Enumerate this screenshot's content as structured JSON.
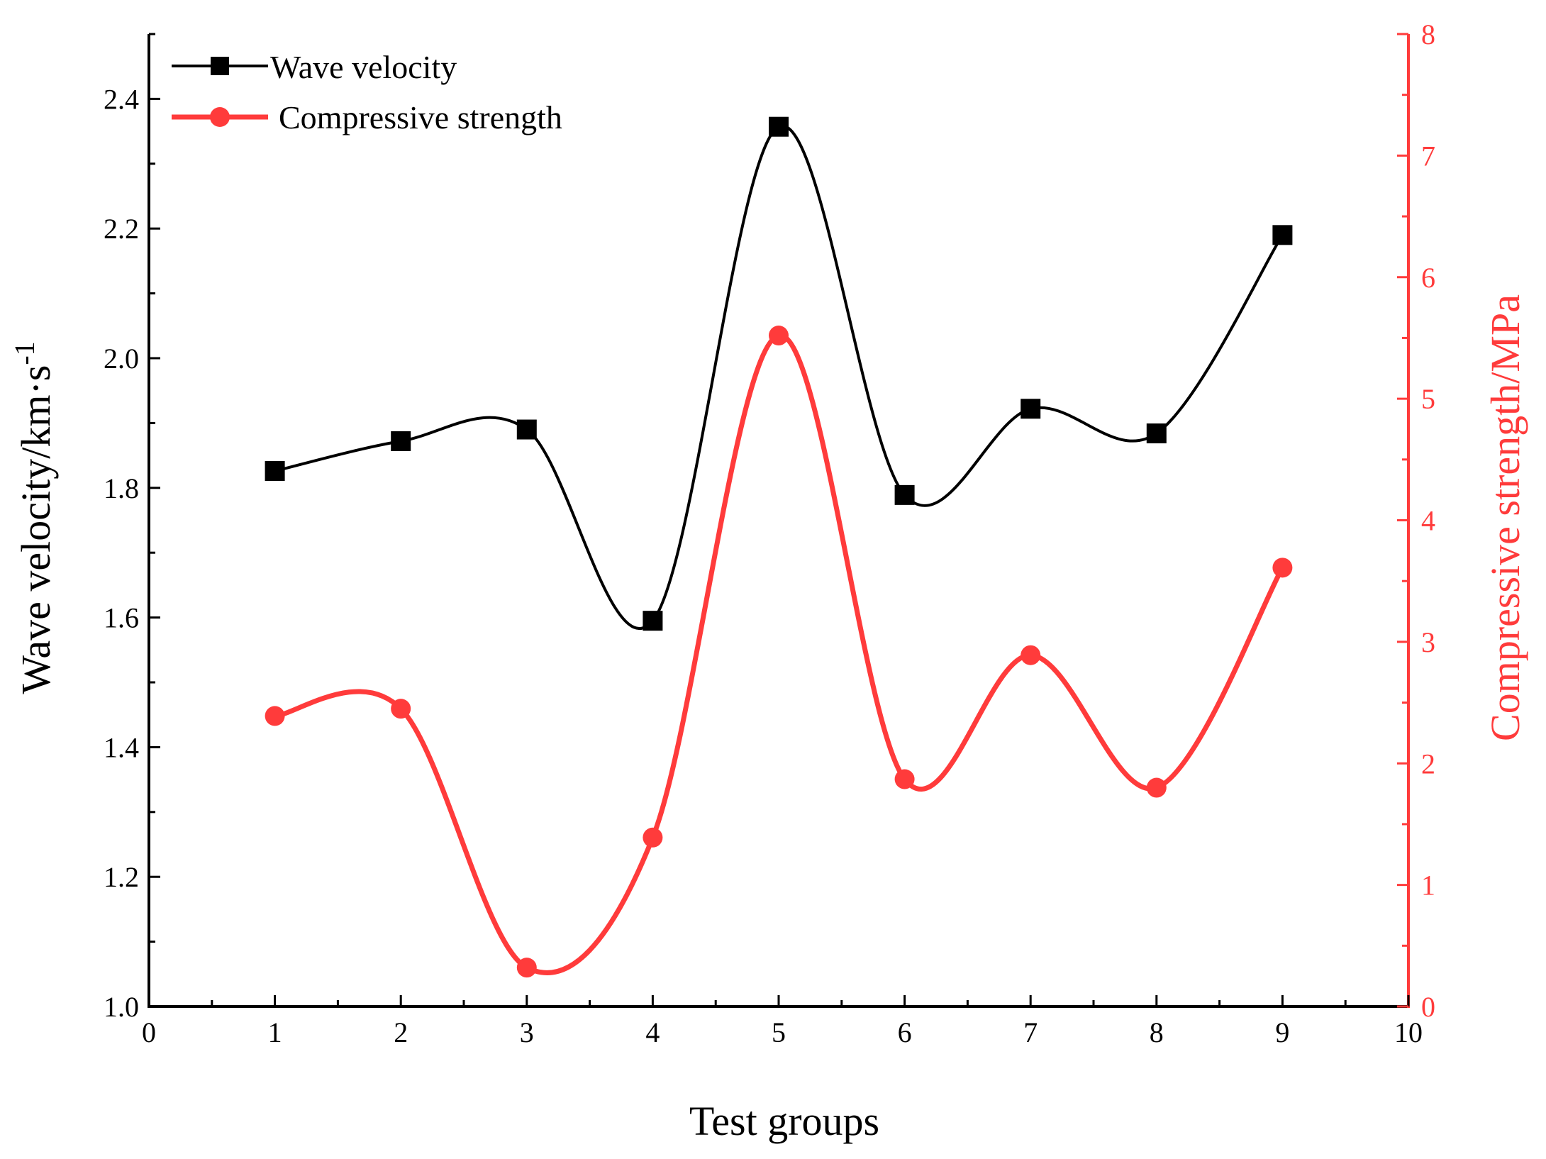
{
  "chart_data": {
    "type": "line",
    "x": [
      1,
      2,
      3,
      4,
      5,
      6,
      7,
      8,
      9
    ],
    "series": [
      {
        "name": "Wave velocity",
        "axis": "left",
        "marker": "square",
        "color": "#000000",
        "values": [
          1.826,
          1.872,
          1.89,
          1.595,
          2.357,
          1.789,
          1.922,
          1.884,
          2.19
        ]
      },
      {
        "name": "Compressive strength",
        "axis": "right",
        "marker": "circle",
        "color": "#ff3b3b",
        "values": [
          2.39,
          2.45,
          0.32,
          1.39,
          5.52,
          1.87,
          2.89,
          1.8,
          3.61
        ]
      }
    ],
    "xlabel": "Test groups",
    "ylabel_left": "Wave velocity/km·s",
    "ylabel_left_sup": "-1",
    "ylabel_right": "Compressive strength/MPa",
    "xlim": [
      0,
      10
    ],
    "ylim_left": [
      1.0,
      2.5
    ],
    "ylim_right": [
      0,
      8
    ],
    "xticks": [
      "0",
      "1",
      "2",
      "3",
      "4",
      "5",
      "6",
      "7",
      "8",
      "9",
      "10"
    ],
    "yticks_left": [
      "1.0",
      "1.2",
      "1.4",
      "1.6",
      "1.8",
      "2.0",
      "2.2",
      "2.4"
    ],
    "yticks_right": [
      "0",
      "1",
      "2",
      "3",
      "4",
      "5",
      "6",
      "7",
      "8"
    ],
    "legend_position": "top-left",
    "grid": false
  }
}
